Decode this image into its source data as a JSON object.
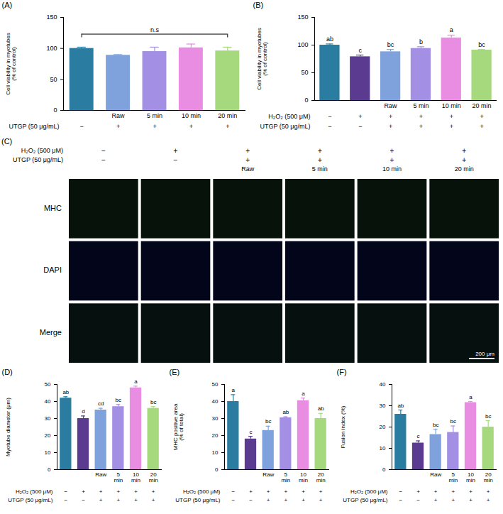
{
  "chart_data": [
    {
      "type": "bar",
      "panel": "(A)",
      "ylabel": "Cell viability in myotubes (% of control)",
      "categories": [
        null,
        "Raw",
        "5 min",
        "10 min",
        "20 min"
      ],
      "values": [
        100,
        89,
        95,
        101,
        96
      ],
      "errors": [
        2,
        1,
        7,
        6,
        6
      ],
      "colors": [
        "#2a7da0",
        "#7fa2dc",
        "#a390e4",
        "#e98de2",
        "#a6d97d"
      ],
      "ylim": [
        0,
        150
      ],
      "yticks": [
        0,
        50,
        100,
        150
      ],
      "annotation": "n.s",
      "conditions": [
        {
          "label": "UTGP (50 μg/mL)",
          "signs": [
            "−",
            "+",
            "+",
            "+",
            "+"
          ]
        }
      ]
    },
    {
      "type": "bar",
      "panel": "(B)",
      "ylabel": "Cell viability in myotubes (% of control)",
      "categories": [
        null,
        null,
        "Raw",
        "5 min",
        "10 min",
        "20 min"
      ],
      "values": [
        100,
        79,
        88,
        94,
        113,
        91
      ],
      "errors": [
        2,
        3,
        4,
        3,
        5,
        1
      ],
      "letters": [
        "ab",
        "c",
        "bc",
        "b",
        "a",
        "bc"
      ],
      "colors": [
        "#2a7da0",
        "#5a3b8f",
        "#7fa2dc",
        "#a390e4",
        "#e98de2",
        "#a6d97d"
      ],
      "ylim": [
        0,
        150
      ],
      "yticks": [
        0,
        50,
        100,
        150
      ],
      "conditions": [
        {
          "label": "H₂O₂ (500 μM)",
          "signs": [
            "−",
            "+",
            "+",
            "+",
            "+",
            "+"
          ]
        },
        {
          "label": "UTGP (50 μg/mL)",
          "signs": [
            "−",
            "−",
            "+",
            "+",
            "+",
            "+"
          ]
        }
      ]
    },
    {
      "type": "bar",
      "panel": "(D)",
      "ylabel": "Myotube diameter (μm)",
      "categories": [
        null,
        null,
        "Raw",
        "5 min",
        "10 min",
        "20 min"
      ],
      "values": [
        42,
        30,
        35,
        37,
        48,
        36
      ],
      "errors": [
        0.8,
        1.5,
        1,
        1.2,
        1,
        1
      ],
      "letters": [
        "ab",
        "d",
        "cd",
        "bc",
        "a",
        "bc"
      ],
      "colors": [
        "#2a7da0",
        "#5a3b8f",
        "#7fa2dc",
        "#a390e4",
        "#e98de2",
        "#a6d97d"
      ],
      "ylim": [
        0,
        50
      ],
      "yticks": [
        0,
        10,
        20,
        30,
        40,
        50
      ],
      "conditions": [
        {
          "label": "H₂O₂ (500 μM)",
          "signs": [
            "−",
            "+",
            "+",
            "+",
            "+",
            "+"
          ]
        },
        {
          "label": "UTGP (50 μg/mL)",
          "signs": [
            "−",
            "−",
            "+",
            "+",
            "+",
            "+"
          ]
        }
      ]
    },
    {
      "type": "bar",
      "panel": "(E)",
      "ylabel": "MHC positive area (% of total)",
      "categories": [
        null,
        null,
        "Raw",
        "5 min",
        "10 min",
        "20 min"
      ],
      "values": [
        40,
        18,
        23,
        30.5,
        40.5,
        30
      ],
      "errors": [
        4,
        1.5,
        2.5,
        0.5,
        1.5,
        3
      ],
      "letters": [
        "a",
        "c",
        "bc",
        "ab",
        "a",
        "ab"
      ],
      "colors": [
        "#2a7da0",
        "#5a3b8f",
        "#7fa2dc",
        "#a390e4",
        "#e98de2",
        "#a6d97d"
      ],
      "ylim": [
        0,
        50
      ],
      "yticks": [
        0,
        10,
        20,
        30,
        40,
        50
      ],
      "conditions": [
        {
          "label": "H₂O₂ (500 μM)",
          "signs": [
            "−",
            "+",
            "+",
            "+",
            "+",
            "+"
          ]
        },
        {
          "label": "UTGP (50 μg/mL)",
          "signs": [
            "−",
            "−",
            "+",
            "+",
            "+",
            "+"
          ]
        }
      ]
    },
    {
      "type": "bar",
      "panel": "(F)",
      "ylabel": "Fusion index (%)",
      "categories": [
        null,
        null,
        "Raw",
        "5 min",
        "10 min",
        "20 min"
      ],
      "values": [
        26,
        12.5,
        16.5,
        17.5,
        31.5,
        20
      ],
      "errors": [
        2,
        1,
        2.5,
        3,
        0.5,
        3
      ],
      "letters": [
        "ab",
        "c",
        "bc",
        "bc",
        "a",
        "bc"
      ],
      "colors": [
        "#2a7da0",
        "#5a3b8f",
        "#7fa2dc",
        "#a390e4",
        "#e98de2",
        "#a6d97d"
      ],
      "ylim": [
        0,
        40
      ],
      "yticks": [
        0,
        10,
        20,
        30,
        40
      ],
      "conditions": [
        {
          "label": "H₂O₂ (500 μM)",
          "signs": [
            "−",
            "+",
            "+",
            "+",
            "+",
            "+"
          ]
        },
        {
          "label": "UTGP (50 μg/mL)",
          "signs": [
            "−",
            "−",
            "+",
            "+",
            "+",
            "+"
          ]
        }
      ]
    }
  ],
  "panel_c": {
    "panel": "(C)",
    "conditions": [
      {
        "label": "H₂O₂ (500 μM)",
        "signs": [
          "−",
          "+",
          "+",
          "+",
          "+",
          "+"
        ]
      },
      {
        "label": "UTGP (50 μg/mL)",
        "signs": [
          "−",
          "−",
          "+",
          "+",
          "+",
          "+"
        ]
      }
    ],
    "categories": [
      null,
      null,
      "Raw",
      "5 min",
      "10 min",
      "20 min"
    ],
    "rows": [
      "MHC",
      "DAPI",
      "Merge"
    ],
    "scale_bar": "200 μm"
  }
}
